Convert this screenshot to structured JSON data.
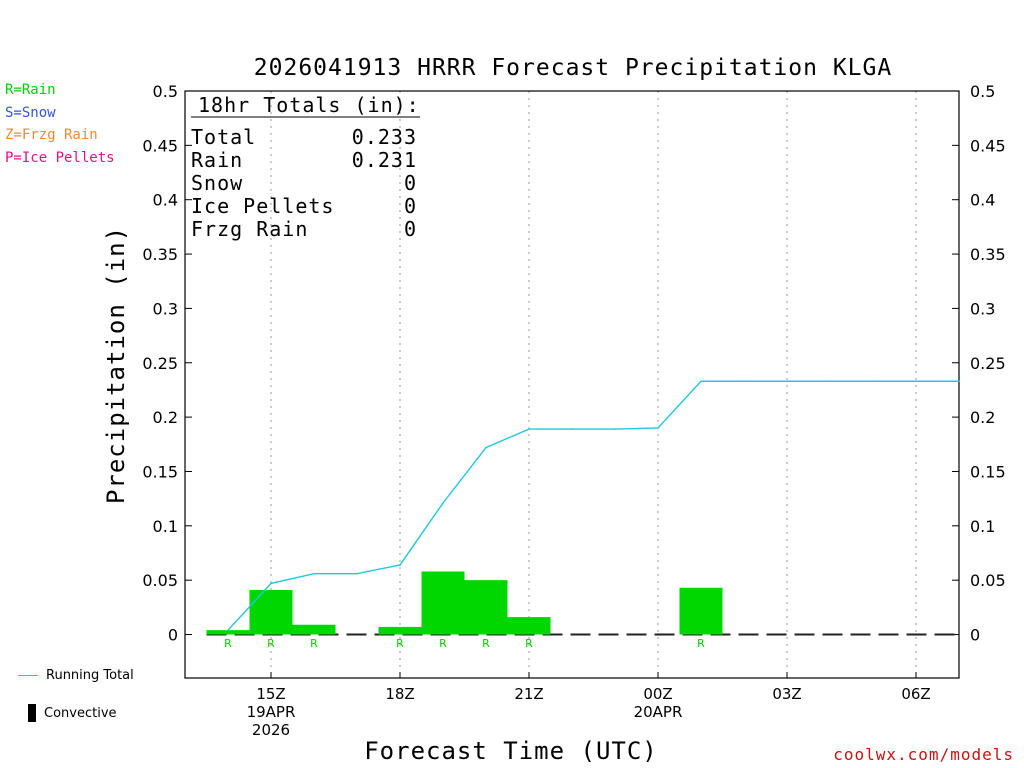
{
  "legend_types": {
    "rain": "R=Rain",
    "snow": "S=Snow",
    "frzg": "Z=Frzg Rain",
    "ice": "P=Ice Pellets"
  },
  "legend_series": {
    "running": "Running Total",
    "convective": "Convective"
  },
  "credit": "coolwx.com/models",
  "colors": {
    "bar": "#00d600",
    "running_total": "#20c8d8",
    "rain_text": "#00d000",
    "snow_text": "#3355dd",
    "frzg_text": "#ee8833",
    "ice_text": "#dd1188",
    "credit": "#cc1111"
  },
  "chart_data": {
    "type": "bar",
    "title": "2026041913 HRRR Forecast Precipitation KLGA",
    "xlabel": "Forecast Time (UTC)",
    "ylabel": "Precipitation (in)",
    "ylim": [
      -0.04,
      0.5
    ],
    "yticks": [
      0,
      0.05,
      0.1,
      0.15,
      0.2,
      0.25,
      0.3,
      0.35,
      0.4,
      0.45,
      0.5
    ],
    "ytick_labels": [
      "0",
      "0.05",
      "0.1",
      "0.15",
      "0.2",
      "0.25",
      "0.3",
      "0.35",
      "0.4",
      "0.45",
      "0.5"
    ],
    "xlim_hours": [
      13,
      31
    ],
    "xticks": [
      {
        "hour": 15,
        "lines": [
          "15Z",
          "19APR",
          "2026"
        ]
      },
      {
        "hour": 18,
        "lines": [
          "18Z"
        ]
      },
      {
        "hour": 21,
        "lines": [
          "21Z"
        ]
      },
      {
        "hour": 24,
        "lines": [
          "00Z",
          "20APR"
        ]
      },
      {
        "hour": 27,
        "lines": [
          "03Z"
        ]
      },
      {
        "hour": 30,
        "lines": [
          "06Z"
        ]
      }
    ],
    "hourly_precip": [
      {
        "hour": 14,
        "value": 0.004,
        "type": "R"
      },
      {
        "hour": 15,
        "value": 0.041,
        "type": "R"
      },
      {
        "hour": 16,
        "value": 0.009,
        "type": "R"
      },
      {
        "hour": 17,
        "value": 0.0,
        "type": ""
      },
      {
        "hour": 18,
        "value": 0.007,
        "type": "R"
      },
      {
        "hour": 19,
        "value": 0.058,
        "type": "R"
      },
      {
        "hour": 20,
        "value": 0.05,
        "type": "R"
      },
      {
        "hour": 21,
        "value": 0.016,
        "type": "R"
      },
      {
        "hour": 22,
        "value": 0.0,
        "type": ""
      },
      {
        "hour": 23,
        "value": 0.0,
        "type": ""
      },
      {
        "hour": 24,
        "value": 0.0,
        "type": ""
      },
      {
        "hour": 25,
        "value": 0.043,
        "type": "R"
      },
      {
        "hour": 26,
        "value": 0.0,
        "type": ""
      },
      {
        "hour": 27,
        "value": 0.0,
        "type": ""
      },
      {
        "hour": 28,
        "value": 0.0,
        "type": ""
      },
      {
        "hour": 29,
        "value": 0.0,
        "type": ""
      },
      {
        "hour": 30,
        "value": 0.0,
        "type": ""
      },
      {
        "hour": 31,
        "value": 0.0,
        "type": ""
      }
    ],
    "running_total": {
      "name": "Running Total",
      "x": [
        14,
        15,
        16,
        17,
        18,
        19,
        20,
        21,
        22,
        23,
        24,
        25,
        26,
        27,
        28,
        29,
        30,
        31
      ],
      "y": [
        0.004,
        0.047,
        0.056,
        0.056,
        0.064,
        0.121,
        0.172,
        0.189,
        0.189,
        0.189,
        0.19,
        0.233,
        0.233,
        0.233,
        0.233,
        0.233,
        0.233,
        0.233
      ]
    },
    "totals": {
      "heading": "18hr Totals (in):",
      "rows": [
        {
          "label": "Total",
          "value": "0.233"
        },
        {
          "label": "Rain",
          "value": "0.231"
        },
        {
          "label": "Snow",
          "value": "0"
        },
        {
          "label": "Ice Pellets",
          "value": "0"
        },
        {
          "label": "Frzg Rain",
          "value": "0"
        }
      ]
    }
  }
}
